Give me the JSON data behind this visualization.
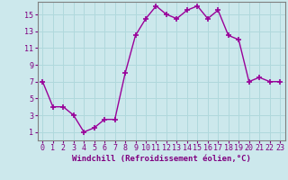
{
  "x": [
    0,
    1,
    2,
    3,
    4,
    5,
    6,
    7,
    8,
    9,
    10,
    11,
    12,
    13,
    14,
    15,
    16,
    17,
    18,
    19,
    20,
    21,
    22,
    23
  ],
  "y": [
    7,
    4,
    4,
    3,
    1,
    1.5,
    2.5,
    2.5,
    8,
    12.5,
    14.5,
    16,
    15,
    14.5,
    15.5,
    16,
    14.5,
    15.5,
    12.5,
    12,
    7,
    7.5,
    7,
    7
  ],
  "line_color": "#990099",
  "marker": "+",
  "marker_size": 4,
  "marker_linewidth": 1.2,
  "line_width": 1.0,
  "xlabel": "Windchill (Refroidissement éolien,°C)",
  "xlabel_fontsize": 6.5,
  "xlim": [
    -0.5,
    23.5
  ],
  "ylim": [
    0,
    16.5
  ],
  "yticks": [
    1,
    3,
    5,
    7,
    9,
    11,
    13,
    15
  ],
  "xticks": [
    0,
    1,
    2,
    3,
    4,
    5,
    6,
    7,
    8,
    9,
    10,
    11,
    12,
    13,
    14,
    15,
    16,
    17,
    18,
    19,
    20,
    21,
    22,
    23
  ],
  "background_color": "#cce8ec",
  "grid_color": "#b0d8dc",
  "tick_label_fontsize": 6,
  "tick_color": "#800080",
  "label_color": "#800080"
}
